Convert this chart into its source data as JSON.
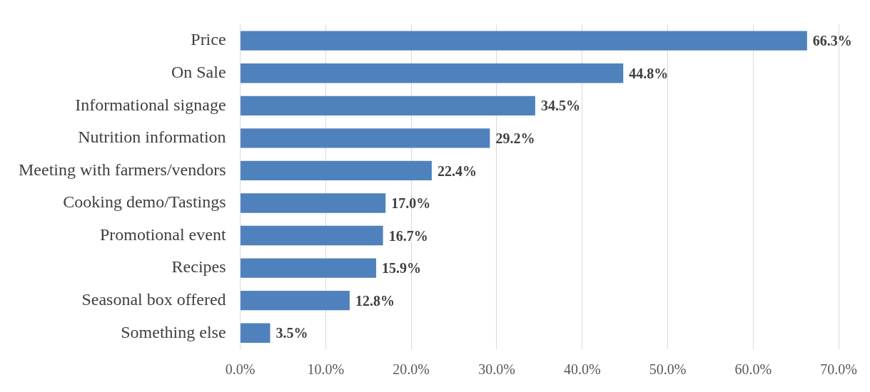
{
  "chart_data": {
    "type": "bar",
    "orientation": "horizontal",
    "categories": [
      "Price",
      "On Sale",
      "Informational signage",
      "Nutrition information",
      "Meeting with farmers/vendors",
      "Cooking demo/Tastings",
      "Promotional event",
      "Recipes",
      "Seasonal box offered",
      "Something else"
    ],
    "values": [
      66.3,
      44.8,
      34.5,
      29.2,
      22.4,
      17.0,
      16.7,
      15.9,
      12.8,
      3.5
    ],
    "value_labels": [
      "66.3%",
      "44.8%",
      "34.5%",
      "29.2%",
      "22.4%",
      "17.0%",
      "16.7%",
      "15.9%",
      "12.8%",
      "3.5%"
    ],
    "color": "#4f81bd",
    "xlim": [
      0,
      70
    ],
    "xticks": [
      {
        "value": 0,
        "label": "0.0%"
      },
      {
        "value": 10,
        "label": "10.0%"
      },
      {
        "value": 20,
        "label": "20.0%"
      },
      {
        "value": 30,
        "label": "30.0%"
      },
      {
        "value": 40,
        "label": "40.0%"
      },
      {
        "value": 50,
        "label": "50.0%"
      },
      {
        "value": 60,
        "label": "60.0%"
      },
      {
        "value": 70,
        "label": "70.0%"
      }
    ],
    "grid": "x"
  }
}
